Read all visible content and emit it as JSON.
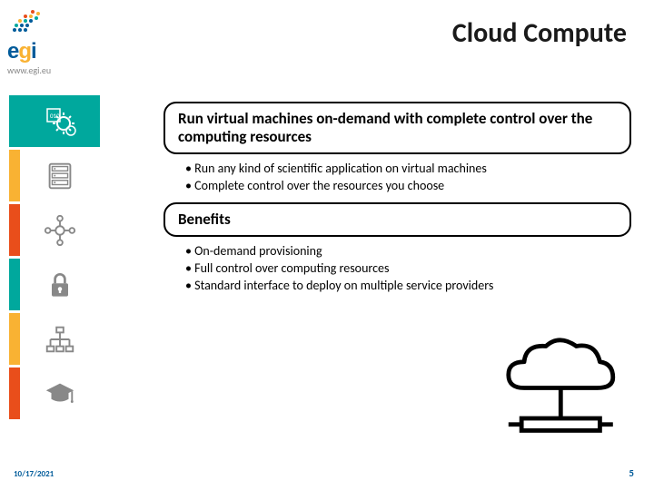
{
  "logo": {
    "text_main": "e",
    "text_accent": "g",
    "text_end": "i",
    "url": "www.egi.eu"
  },
  "title": "Cloud Compute",
  "sidebar": {
    "rows": [
      {
        "stripe": "#00a89d",
        "icon": "gear",
        "iconbg": "#00a89d",
        "iconfg": "#ffffff"
      },
      {
        "stripe": "#f9b233",
        "icon": "server",
        "iconbg": "#ffffff",
        "iconfg": "#888888"
      },
      {
        "stripe": "#e94e1b",
        "icon": "network",
        "iconbg": "#ffffff",
        "iconfg": "#888888"
      },
      {
        "stripe": "#00a89d",
        "icon": "lock",
        "iconbg": "#ffffff",
        "iconfg": "#888888"
      },
      {
        "stripe": "#f9b233",
        "icon": "tree",
        "iconbg": "#ffffff",
        "iconfg": "#888888"
      },
      {
        "stripe": "#e94e1b",
        "icon": "grad",
        "iconbg": "#ffffff",
        "iconfg": "#888888"
      }
    ]
  },
  "panels": [
    {
      "heading": "Run virtual machines on-demand with complete control over the computing resources",
      "bullets": [
        "Run any kind of scientific application on virtual machines",
        "Complete control over the resources you choose"
      ]
    },
    {
      "heading": "Benefits",
      "bullets": [
        "On-demand provisioning",
        "Full control over computing resources",
        "Standard interface to deploy on multiple service providers"
      ]
    }
  ],
  "footer": {
    "date": "10/17/2021",
    "page": "5"
  },
  "colors": {
    "title": "#1a1a1a",
    "border": "#000000",
    "footer": "#005b9a"
  }
}
